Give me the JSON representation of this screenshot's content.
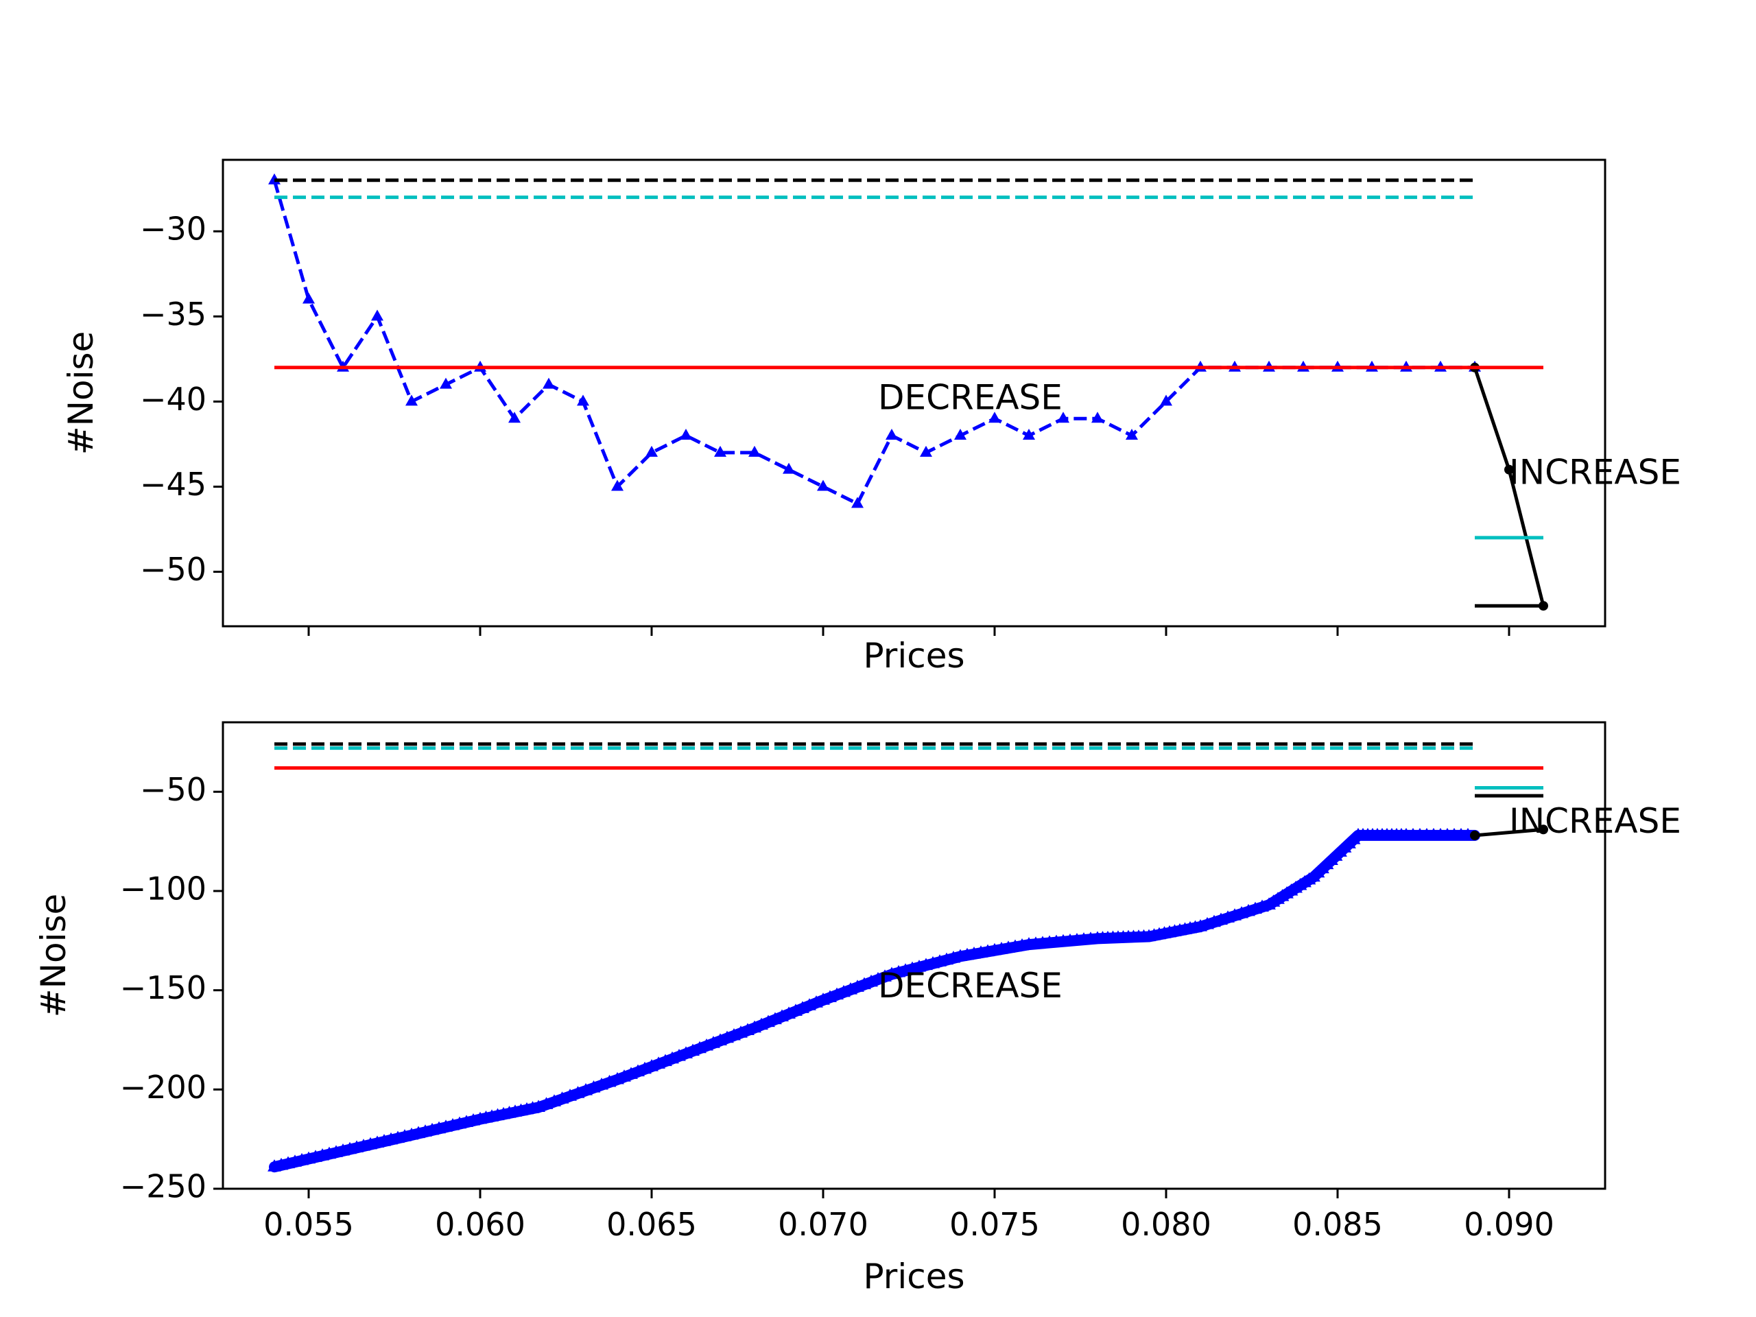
{
  "figure": {
    "background": "#ffffff"
  },
  "chart_data": [
    {
      "type": "line",
      "xlabel": "Prices",
      "ylabel": "#Noise",
      "xlim": [
        0.0525,
        0.0928
      ],
      "ylim": [
        -53.2,
        -25.8
      ],
      "xticks": [
        0.055,
        0.06,
        0.065,
        0.07,
        0.075,
        0.08,
        0.085,
        0.09
      ],
      "show_xtick_labels": false,
      "yticks": [
        -50,
        -45,
        -40,
        -35,
        -30
      ],
      "ytick_labels": [
        "−50",
        "−45",
        "−40",
        "−35",
        "−30"
      ],
      "grid": false,
      "legend": "none",
      "series": [
        {
          "style": "dashed",
          "marker": "triangle",
          "color": "#0000ff",
          "x": [
            0.054,
            0.055,
            0.056,
            0.057,
            0.058,
            0.059,
            0.06,
            0.061,
            0.062,
            0.063,
            0.064,
            0.065,
            0.066,
            0.067,
            0.068,
            0.069,
            0.07,
            0.071,
            0.072,
            0.073,
            0.074,
            0.075,
            0.076,
            0.077,
            0.078,
            0.079,
            0.08,
            0.081,
            0.082,
            0.083,
            0.084,
            0.085,
            0.086,
            0.087,
            0.088,
            0.089
          ],
          "y": [
            -27,
            -34,
            -38,
            -35,
            -40,
            -39,
            -38,
            -41,
            -39,
            -40,
            -45,
            -43,
            -42,
            -43,
            -43,
            -44,
            -45,
            -46,
            -42,
            -43,
            -42,
            -41,
            -42,
            -41,
            -41,
            -42,
            -40,
            -38,
            -38,
            -38,
            -38,
            -38,
            -38,
            -38,
            -38,
            -38
          ]
        },
        {
          "style": "solid",
          "marker": "dot",
          "color": "#000000",
          "x": [
            0.089,
            0.09,
            0.091
          ],
          "y": [
            -38,
            -44,
            -52
          ]
        },
        {
          "style": "dashed",
          "color": "#000000",
          "x": [
            0.054,
            0.089
          ],
          "y": [
            -27,
            -27
          ]
        },
        {
          "style": "dashed",
          "color": "#00bfbf",
          "x": [
            0.054,
            0.089
          ],
          "y": [
            -28,
            -28
          ]
        },
        {
          "style": "solid",
          "color": "#ff0000",
          "x": [
            0.054,
            0.091
          ],
          "y": [
            -38,
            -38
          ]
        },
        {
          "style": "solid",
          "color": "#00bfbf",
          "x": [
            0.089,
            0.091
          ],
          "y": [
            -48,
            -48
          ]
        },
        {
          "style": "solid",
          "color": "#000000",
          "x": [
            0.089,
            0.091
          ],
          "y": [
            -52,
            -52
          ]
        }
      ],
      "annotations": [
        {
          "text": "DECREASE",
          "x": 0.0716,
          "y": -39.9
        },
        {
          "text": "INCREASE",
          "x": 0.09,
          "y": -44.3
        }
      ]
    },
    {
      "type": "line",
      "xlabel": "Prices",
      "ylabel": "#Noise",
      "xlim": [
        0.0525,
        0.0928
      ],
      "ylim": [
        -250,
        -15
      ],
      "xticks": [
        0.055,
        0.06,
        0.065,
        0.07,
        0.075,
        0.08,
        0.085,
        0.09
      ],
      "xtick_labels": [
        "0.055",
        "0.060",
        "0.065",
        "0.070",
        "0.075",
        "0.080",
        "0.085",
        "0.090"
      ],
      "show_xtick_labels": true,
      "yticks": [
        -250,
        -200,
        -150,
        -100,
        -50
      ],
      "ytick_labels": [
        "−250",
        "−200",
        "−150",
        "−100",
        "−50"
      ],
      "grid": false,
      "legend": "none",
      "series": [
        {
          "style": "dense-markers",
          "marker": "triangle",
          "color": "#0000ff",
          "x": [
            0.054,
            0.056,
            0.058,
            0.06,
            0.0617,
            0.064,
            0.066,
            0.068,
            0.07,
            0.072,
            0.074,
            0.076,
            0.078,
            0.0795,
            0.081,
            0.083,
            0.0843,
            0.0856,
            0.087,
            0.089
          ],
          "y": [
            -239,
            -231,
            -223,
            -215,
            -209,
            -195,
            -182,
            -169,
            -155,
            -142,
            -133,
            -127,
            -124,
            -123,
            -118,
            -107,
            -93,
            -72,
            -72,
            -72
          ]
        },
        {
          "style": "solid",
          "marker": "dot",
          "color": "#000000",
          "x": [
            0.089,
            0.091
          ],
          "y": [
            -72,
            -69
          ]
        },
        {
          "style": "dashed",
          "color": "#00bfbf",
          "x": [
            0.054,
            0.089
          ],
          "y": [
            -28,
            -28
          ]
        },
        {
          "style": "dashed",
          "color": "#000000",
          "x": [
            0.054,
            0.089
          ],
          "y": [
            -26,
            -26
          ]
        },
        {
          "style": "solid",
          "color": "#ff0000",
          "x": [
            0.054,
            0.091
          ],
          "y": [
            -38,
            -38
          ]
        },
        {
          "style": "solid",
          "color": "#00bfbf",
          "x": [
            0.089,
            0.091
          ],
          "y": [
            -48,
            -48
          ]
        },
        {
          "style": "solid",
          "color": "#000000",
          "x": [
            0.089,
            0.091
          ],
          "y": [
            -52,
            -52
          ]
        }
      ],
      "annotations": [
        {
          "text": "DECREASE",
          "x": 0.0716,
          "y": -149
        },
        {
          "text": "INCREASE",
          "x": 0.09,
          "y": -66
        }
      ]
    }
  ]
}
